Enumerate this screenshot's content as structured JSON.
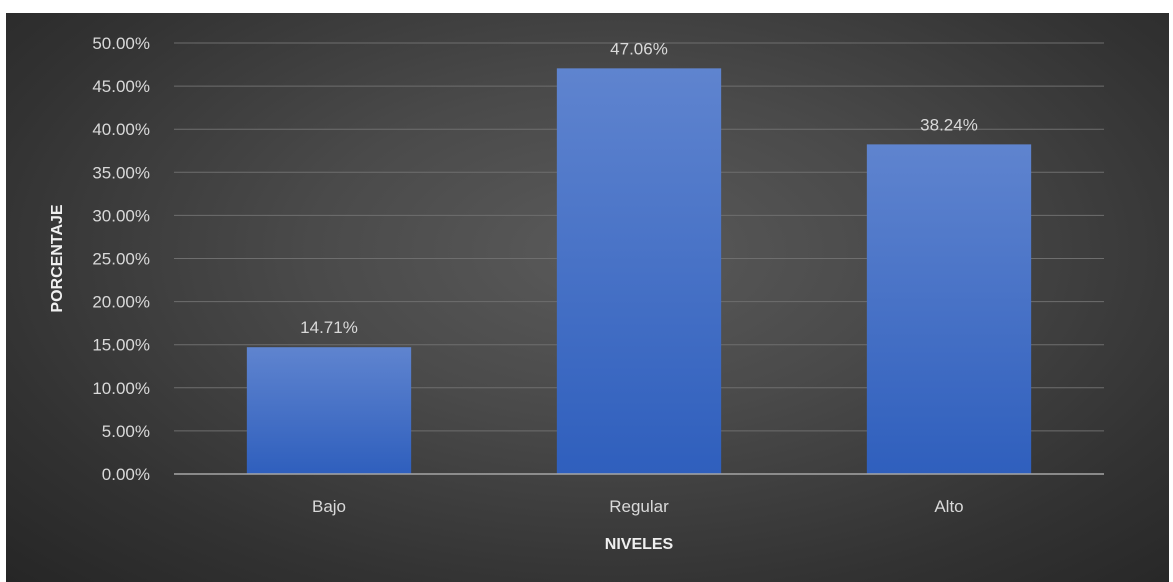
{
  "chart_data": {
    "type": "bar",
    "categories": [
      "Bajo",
      "Regular",
      "Alto"
    ],
    "values": [
      14.71,
      47.06,
      38.24
    ],
    "data_labels": [
      "14.71%",
      "47.06%",
      "38.24%"
    ],
    "xlabel": "NIVELES",
    "ylabel": "PORCENTAJE",
    "ylim": [
      0,
      50
    ],
    "yticks": [
      0,
      5,
      10,
      15,
      20,
      25,
      30,
      35,
      40,
      45,
      50
    ],
    "ytick_labels": [
      "0.00%",
      "5.00%",
      "10.00%",
      "15.00%",
      "20.00%",
      "25.00%",
      "30.00%",
      "35.00%",
      "40.00%",
      "45.00%",
      "50.00%"
    ],
    "grid": true,
    "legend": "none",
    "colors": {
      "bar_top": "#5f84cf",
      "bar_bottom": "#2f5fbd",
      "background": "#404040",
      "text": "#d9d9d9"
    }
  }
}
